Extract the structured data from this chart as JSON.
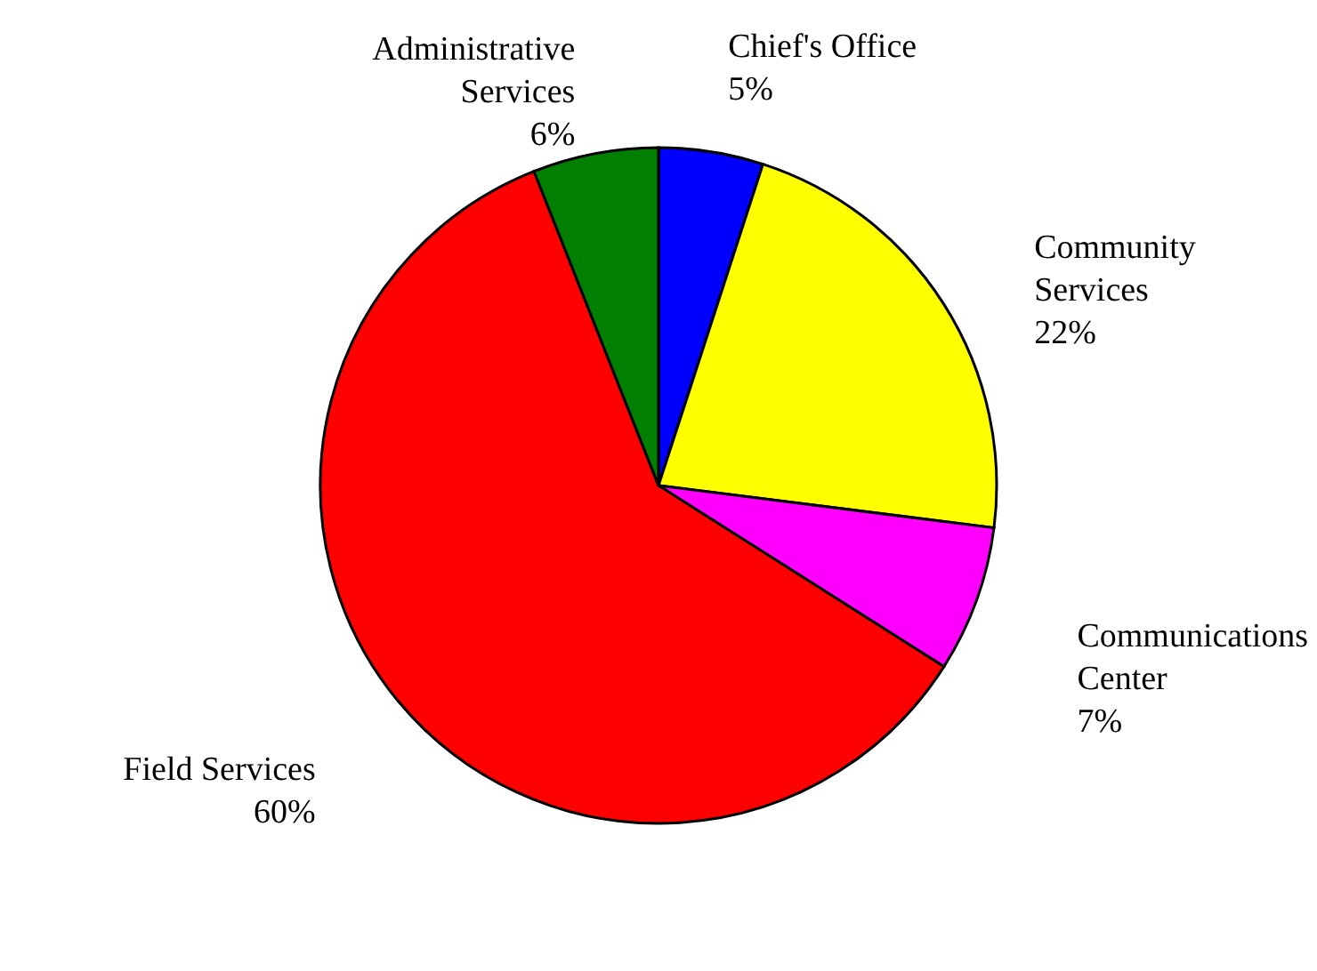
{
  "chart_data": {
    "type": "pie",
    "categories": [
      "Chief's Office",
      "Community Services",
      "Communications Center",
      "Field Services",
      "Administrative Services"
    ],
    "values": [
      5,
      22,
      7,
      60,
      6
    ],
    "value_labels": [
      "5%",
      "22%",
      "7%",
      "60%",
      "6%"
    ],
    "colors": [
      "#0000ff",
      "#ffff00",
      "#ff00ff",
      "#ff0000",
      "#007f00"
    ]
  }
}
